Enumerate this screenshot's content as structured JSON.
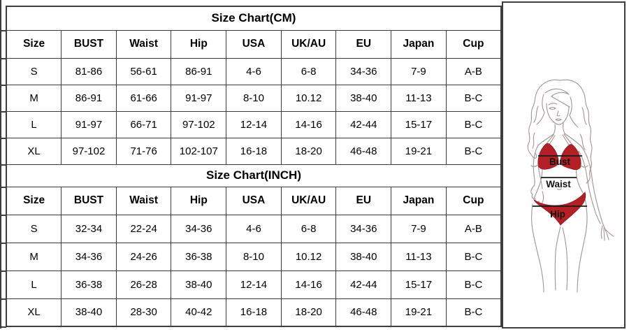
{
  "size_charts": [
    {
      "title": "Size Chart(CM)",
      "columns": [
        "Size",
        "BUST",
        "Waist",
        "Hip",
        "USA",
        "UK/AU",
        "EU",
        "Japan",
        "Cup"
      ],
      "rows": [
        [
          "S",
          "81-86",
          "56-61",
          "86-91",
          "4-6",
          "6-8",
          "34-36",
          "7-9",
          "A-B"
        ],
        [
          "M",
          "86-91",
          "61-66",
          "91-97",
          "8-10",
          "10.12",
          "38-40",
          "11-13",
          "B-C"
        ],
        [
          "L",
          "91-97",
          "66-71",
          "97-102",
          "12-14",
          "14-16",
          "42-44",
          "15-17",
          "B-C"
        ],
        [
          "XL",
          "97-102",
          "71-76",
          "102-107",
          "16-18",
          "18-20",
          "46-48",
          "19-21",
          "B-C"
        ]
      ]
    },
    {
      "title": "Size Chart(INCH)",
      "columns": [
        "Size",
        "BUST",
        "Waist",
        "Hip",
        "USA",
        "UK/AU",
        "EU",
        "Japan",
        "Cup"
      ],
      "rows": [
        [
          "S",
          "32-34",
          "22-24",
          "34-36",
          "4-6",
          "6-8",
          "34-36",
          "7-9",
          "A-B"
        ],
        [
          "M",
          "34-36",
          "24-26",
          "36-38",
          "8-10",
          "10.12",
          "38-40",
          "11-13",
          "B-C"
        ],
        [
          "L",
          "36-38",
          "26-28",
          "38-40",
          "12-14",
          "14-16",
          "42-44",
          "15-17",
          "B-C"
        ],
        [
          "XL",
          "38-40",
          "28-30",
          "40-42",
          "16-18",
          "18-20",
          "46-48",
          "19-21",
          "B-C"
        ]
      ]
    }
  ],
  "figure": {
    "bust_label": "Bust",
    "waist_label": "Waist",
    "hip_label": "Hip",
    "colors": {
      "bikini_red": "#b32025",
      "bikini_red_edge": "#8e171c",
      "line_art": "#a39292",
      "measure_line": "#1a1a1a",
      "table_border": "#3d3d3d"
    }
  }
}
